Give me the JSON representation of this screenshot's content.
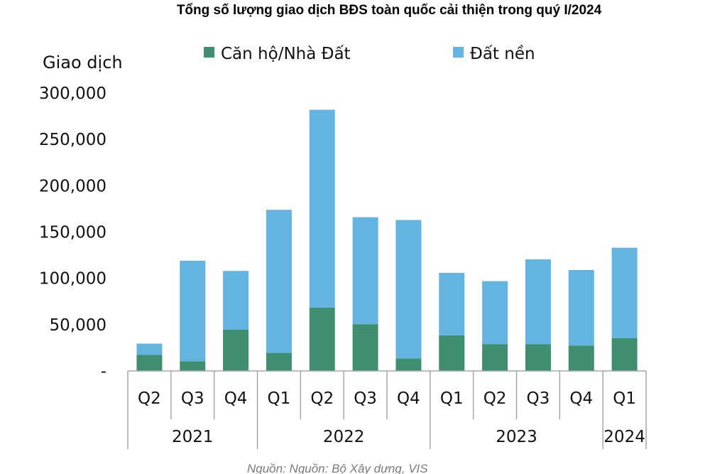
{
  "chart_data": {
    "type": "bar",
    "stacked": true,
    "title": "Tổng số lượng giao dịch BĐS toàn quốc cải thiện trong quý I/2024",
    "ylabel": "Giao dịch",
    "ylim": [
      0,
      300000
    ],
    "yticks": [
      0,
      50000,
      100000,
      150000,
      200000,
      250000,
      300000
    ],
    "ytick_labels": [
      "-",
      "50,000",
      "100,000",
      "150,000",
      "200,000",
      "250,000",
      "300,000"
    ],
    "categories": [
      "Q2",
      "Q3",
      "Q4",
      "Q1",
      "Q2",
      "Q3",
      "Q4",
      "Q1",
      "Q2",
      "Q3",
      "Q4",
      "Q1"
    ],
    "groups": [
      {
        "label": "2021",
        "count": 3
      },
      {
        "label": "2022",
        "count": 4
      },
      {
        "label": "2023",
        "count": 4
      },
      {
        "label": "2024",
        "count": 1
      }
    ],
    "series": [
      {
        "name": "Căn hộ/Nhà Đất",
        "color": "#3e8e6f",
        "values": [
          17500,
          10500,
          44500,
          19500,
          68500,
          50500,
          13500,
          38500,
          29000,
          29000,
          27500,
          35500
        ]
      },
      {
        "name": "Đất nền",
        "color": "#63b4e1",
        "values": [
          12000,
          108500,
          63500,
          154500,
          213500,
          115500,
          149500,
          67500,
          68000,
          91500,
          81500,
          97500
        ]
      }
    ],
    "legend": "top",
    "grid": false,
    "source": "Nguồn: Nguồn: Bộ Xây dựng, VIS"
  }
}
